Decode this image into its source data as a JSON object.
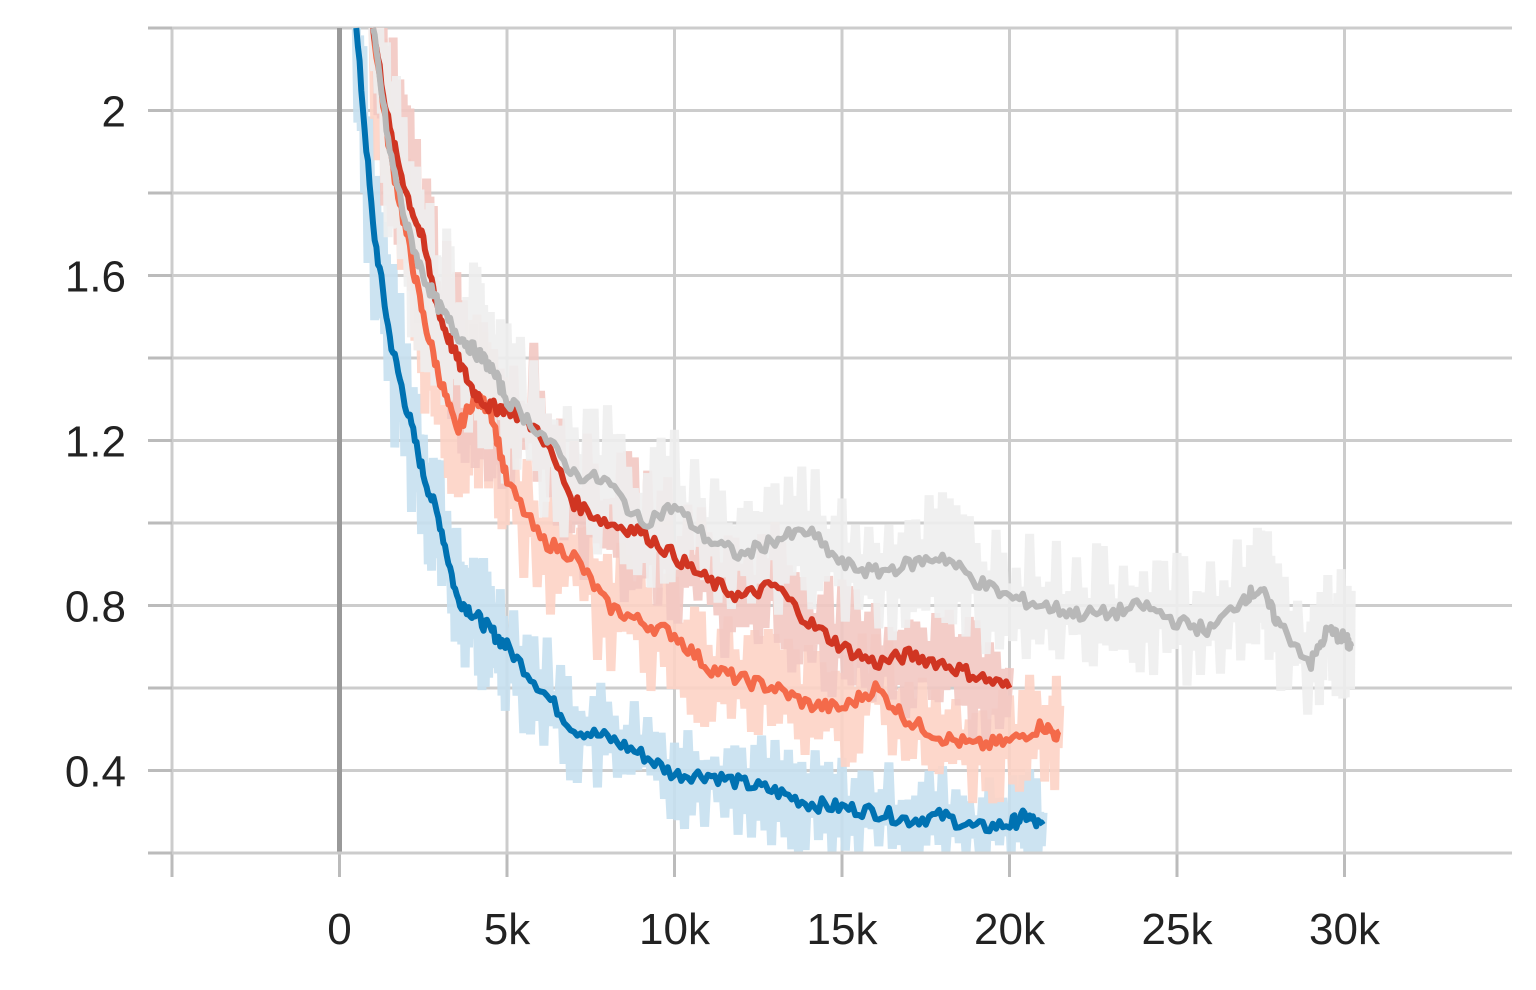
{
  "chart_data": {
    "type": "line",
    "title": "",
    "xlabel": "",
    "ylabel": "",
    "xlim": [
      -5000,
      35000
    ],
    "ylim": [
      0.2,
      2.2
    ],
    "x_ticks": [
      {
        "value": 0,
        "label": "0"
      },
      {
        "value": 5000,
        "label": "5k"
      },
      {
        "value": 10000,
        "label": "10k"
      },
      {
        "value": 15000,
        "label": "15k"
      },
      {
        "value": 20000,
        "label": "20k"
      },
      {
        "value": 25000,
        "label": "25k"
      },
      {
        "value": 30000,
        "label": "30k"
      }
    ],
    "x_minor_ticks": [
      -5000
    ],
    "y_ticks": [
      {
        "value": 2.0,
        "label": "2"
      },
      {
        "value": 1.6,
        "label": "1.6"
      },
      {
        "value": 1.2,
        "label": "1.2"
      },
      {
        "value": 0.8,
        "label": "0.8"
      },
      {
        "value": 0.4,
        "label": "0.4"
      }
    ],
    "y_minor_ticks": [
      2.2,
      1.8,
      1.4,
      1.0,
      0.6,
      0.2
    ],
    "grid": true,
    "legend": "none",
    "series": [
      {
        "color": "#0072b2",
        "raw_color": "#c6e0ef",
        "x": [
          500,
          1000,
          1500,
          2000,
          2500,
          3000,
          3500,
          4000,
          4500,
          5000,
          6000,
          7000,
          8000,
          9000,
          10000,
          11000,
          12000,
          13000,
          14000,
          15000,
          16000,
          17000,
          18000,
          19000,
          20000,
          20500,
          21000
        ],
        "y": [
          2.2,
          1.72,
          1.45,
          1.28,
          1.12,
          1.0,
          0.82,
          0.78,
          0.74,
          0.7,
          0.6,
          0.5,
          0.48,
          0.44,
          0.39,
          0.39,
          0.37,
          0.35,
          0.32,
          0.31,
          0.3,
          0.28,
          0.29,
          0.26,
          0.27,
          0.29,
          0.26
        ]
      },
      {
        "color": "#f46a4a",
        "raw_color": "#fdd3c5",
        "x": [
          1000,
          1500,
          2000,
          2500,
          3000,
          3500,
          4000,
          4500,
          5000,
          6000,
          7000,
          8000,
          9000,
          10000,
          11000,
          12000,
          13000,
          14000,
          15000,
          16000,
          17000,
          18000,
          19000,
          20000,
          21000,
          21500
        ],
        "y": [
          2.2,
          1.9,
          1.7,
          1.5,
          1.35,
          1.22,
          1.3,
          1.28,
          1.1,
          0.96,
          0.92,
          0.8,
          0.76,
          0.73,
          0.65,
          0.62,
          0.6,
          0.56,
          0.55,
          0.6,
          0.52,
          0.48,
          0.46,
          0.47,
          0.51,
          0.48
        ]
      },
      {
        "color": "#d03522",
        "raw_color": "#f2c8c2",
        "x": [
          1000,
          1500,
          2000,
          2500,
          3000,
          3500,
          4000,
          4500,
          5000,
          6000,
          7000,
          8000,
          9000,
          10000,
          11000,
          12000,
          13000,
          14000,
          15000,
          16000,
          17000,
          18000,
          19000,
          20000
        ],
        "y": [
          2.2,
          1.95,
          1.8,
          1.68,
          1.5,
          1.4,
          1.32,
          1.28,
          1.28,
          1.22,
          1.05,
          1.0,
          0.98,
          0.92,
          0.86,
          0.82,
          0.85,
          0.76,
          0.7,
          0.66,
          0.68,
          0.66,
          0.63,
          0.6
        ]
      },
      {
        "color": "#b8b8b8",
        "raw_color": "#eeeeee",
        "x": [
          1000,
          1500,
          2000,
          2500,
          3000,
          3500,
          4000,
          4500,
          5000,
          6000,
          7000,
          8000,
          9000,
          10000,
          11000,
          12000,
          13000,
          14000,
          15000,
          16000,
          17000,
          18000,
          19000,
          20000,
          21000,
          22000,
          23000,
          24000,
          25000,
          26000,
          27000,
          27500,
          28000,
          29000,
          29500,
          30000,
          30200
        ],
        "y": [
          2.2,
          1.9,
          1.72,
          1.6,
          1.52,
          1.46,
          1.42,
          1.38,
          1.3,
          1.22,
          1.12,
          1.1,
          1.0,
          1.04,
          0.96,
          0.92,
          0.96,
          0.98,
          0.9,
          0.88,
          0.9,
          0.92,
          0.86,
          0.82,
          0.8,
          0.78,
          0.78,
          0.8,
          0.76,
          0.74,
          0.82,
          0.84,
          0.76,
          0.66,
          0.74,
          0.72,
          0.7
        ]
      }
    ]
  }
}
